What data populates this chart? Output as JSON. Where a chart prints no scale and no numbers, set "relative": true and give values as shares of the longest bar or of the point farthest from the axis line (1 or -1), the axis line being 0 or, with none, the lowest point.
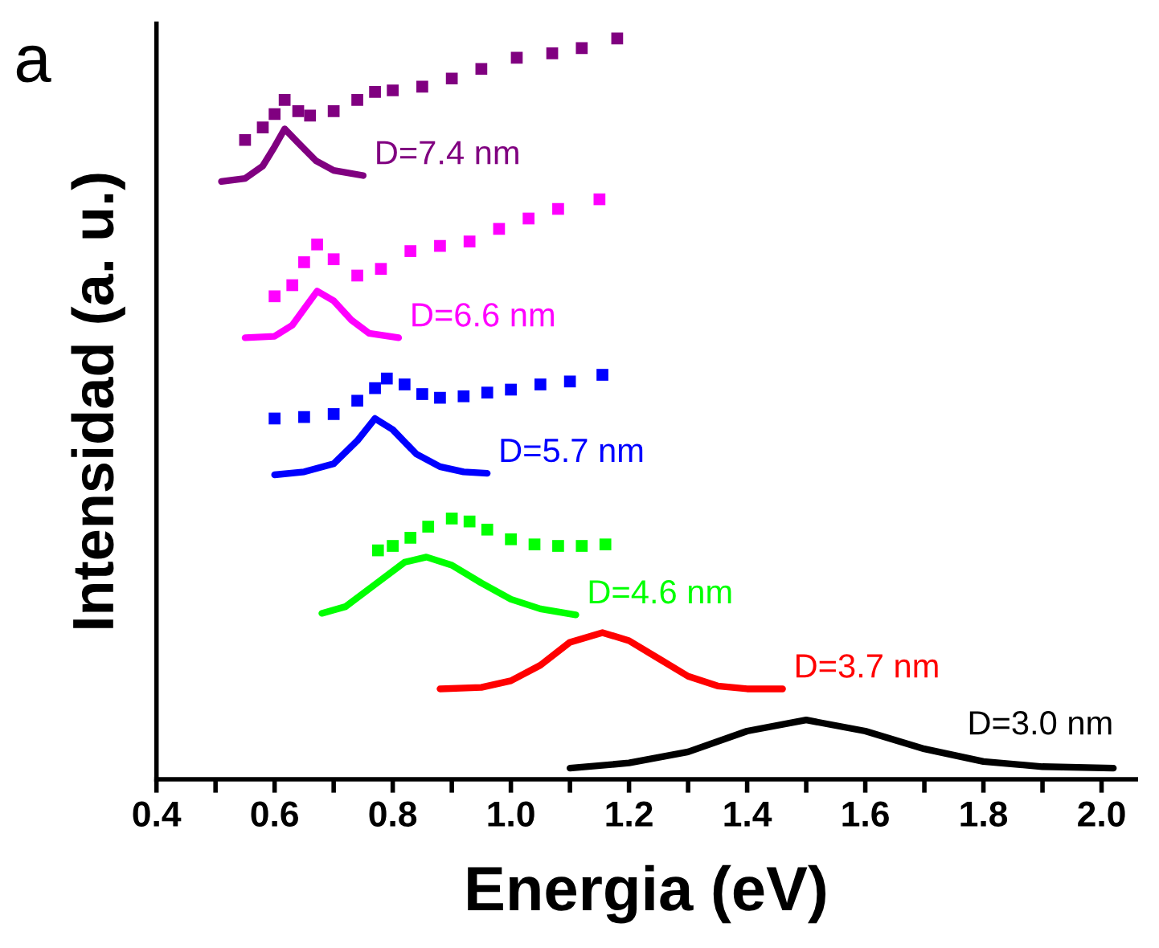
{
  "chart_data": {
    "type": "line",
    "relative": true,
    "xlabel": "Energia (eV)",
    "ylabel": "Intensidad (a. u.)",
    "xlim": [
      0.4,
      2.058
    ],
    "xticks": [
      0.4,
      {
        "value": 0.5,
        "label": null
      },
      0.6,
      {
        "value": 0.7,
        "label": null
      },
      0.8,
      {
        "value": 0.9,
        "label": null
      },
      {
        "value": 1.0,
        "label": "1.0"
      },
      {
        "value": 1.1,
        "label": null
      },
      1.2,
      {
        "value": 1.3,
        "label": null
      },
      1.4,
      {
        "value": 1.5,
        "label": null
      },
      1.6,
      {
        "value": 1.7,
        "label": null
      },
      1.8,
      {
        "value": 1.9,
        "label": null
      },
      {
        "value": 2.0,
        "label": "2.0"
      }
    ],
    "tick_labels": "x",
    "grid": false,
    "series": [
      {
        "name": "D=3.0 nm",
        "color": "#000000",
        "x": [
          1.1,
          1.2,
          1.3,
          1.4,
          1.5,
          1.6,
          1.7,
          1.8,
          1.9,
          2.02
        ],
        "values": [
          0.015,
          0.022,
          0.037,
          0.065,
          0.08,
          0.065,
          0.041,
          0.024,
          0.017,
          0.015
        ]
      },
      {
        "name": "D=3.7 nm",
        "color": "#ff0000",
        "x": [
          0.88,
          0.95,
          1.0,
          1.05,
          1.1,
          1.155,
          1.2,
          1.25,
          1.3,
          1.35,
          1.4,
          1.46
        ],
        "values": [
          0.122,
          0.124,
          0.133,
          0.154,
          0.185,
          0.198,
          0.187,
          0.163,
          0.139,
          0.126,
          0.122,
          0.122
        ]
      },
      {
        "name": "D=4.6 nm",
        "color": "#00ff00",
        "x": [
          0.68,
          0.72,
          0.77,
          0.82,
          0.857,
          0.9,
          0.95,
          1.0,
          1.05,
          1.11
        ],
        "values": [
          0.224,
          0.233,
          0.263,
          0.293,
          0.3,
          0.289,
          0.265,
          0.243,
          0.23,
          0.222
        ]
      },
      {
        "type": "scatter",
        "marker": "square",
        "color": "#00ff00",
        "x": [
          0.775,
          0.8,
          0.83,
          0.86,
          0.9,
          0.93,
          0.96,
          1.0,
          1.04,
          1.08,
          1.12,
          1.16
        ],
        "values": [
          0.309,
          0.315,
          0.326,
          0.341,
          0.352,
          0.348,
          0.337,
          0.324,
          0.317,
          0.315,
          0.315,
          0.317
        ]
      },
      {
        "name": "D=5.7 nm",
        "color": "#0000ff",
        "x": [
          0.6,
          0.65,
          0.7,
          0.74,
          0.77,
          0.8,
          0.84,
          0.88,
          0.92,
          0.96
        ],
        "values": [
          0.411,
          0.415,
          0.426,
          0.457,
          0.487,
          0.472,
          0.439,
          0.422,
          0.415,
          0.413
        ]
      },
      {
        "type": "scatter",
        "marker": "square",
        "color": "#0000ff",
        "x": [
          0.6,
          0.65,
          0.7,
          0.74,
          0.77,
          0.79,
          0.82,
          0.85,
          0.88,
          0.92,
          0.96,
          1.0,
          1.05,
          1.1,
          1.155
        ],
        "values": [
          0.487,
          0.489,
          0.493,
          0.511,
          0.528,
          0.541,
          0.533,
          0.52,
          0.515,
          0.517,
          0.522,
          0.526,
          0.533,
          0.537,
          0.546
        ]
      },
      {
        "name": "D=6.6 nm",
        "color": "#ff00ff",
        "x": [
          0.55,
          0.6,
          0.63,
          0.65,
          0.672,
          0.7,
          0.73,
          0.76,
          0.81
        ],
        "values": [
          0.596,
          0.598,
          0.613,
          0.635,
          0.659,
          0.646,
          0.62,
          0.602,
          0.596
        ]
      },
      {
        "type": "scatter",
        "marker": "square",
        "color": "#ff00ff",
        "x": [
          0.6,
          0.63,
          0.65,
          0.672,
          0.7,
          0.74,
          0.78,
          0.83,
          0.88,
          0.93,
          0.98,
          1.03,
          1.08,
          1.15
        ],
        "values": [
          0.652,
          0.667,
          0.698,
          0.722,
          0.702,
          0.68,
          0.689,
          0.713,
          0.72,
          0.726,
          0.743,
          0.757,
          0.77,
          0.783
        ]
      },
      {
        "name": "D=7.4 nm",
        "color": "#800080",
        "x": [
          0.51,
          0.55,
          0.58,
          0.6,
          0.617,
          0.64,
          0.67,
          0.7,
          0.75
        ],
        "values": [
          0.807,
          0.811,
          0.828,
          0.854,
          0.878,
          0.859,
          0.835,
          0.822,
          0.815
        ]
      },
      {
        "type": "scatter",
        "marker": "square",
        "color": "#800080",
        "x": [
          0.55,
          0.58,
          0.6,
          0.617,
          0.64,
          0.66,
          0.7,
          0.74,
          0.77,
          0.8,
          0.85,
          0.9,
          0.95,
          1.01,
          1.07,
          1.12,
          1.18
        ],
        "values": [
          0.863,
          0.88,
          0.898,
          0.917,
          0.902,
          0.896,
          0.902,
          0.917,
          0.928,
          0.93,
          0.935,
          0.946,
          0.959,
          0.974,
          0.98,
          0.987,
          1.0
        ]
      }
    ],
    "annotations": [
      "a"
    ]
  }
}
